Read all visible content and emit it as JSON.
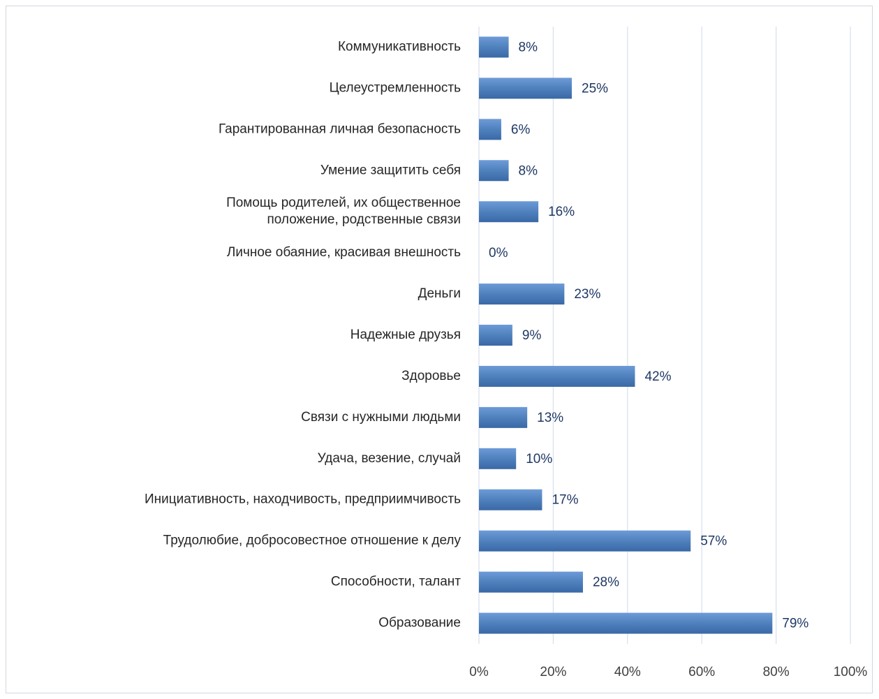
{
  "chart_data": {
    "type": "bar",
    "orientation": "horizontal",
    "categories": [
      "Коммуникативность",
      "Целеустремленность",
      "Гарантированная личная безопасность",
      "Умение защитить себя",
      "Помощь родителей, их общественное\nположение, родственные связи",
      "Личное обаяние, красивая внешность",
      "Деньги",
      "Надежные друзья",
      "Здоровье",
      "Связи с нужными людьми",
      "Удача, везение, случай",
      "Инициативность, находчивость, предприимчивость",
      "Трудолюбие, добросовестное отношение к делу",
      "Способности, талант",
      "Образование"
    ],
    "values": [
      8,
      25,
      6,
      8,
      16,
      0,
      23,
      9,
      42,
      13,
      10,
      17,
      57,
      28,
      79
    ],
    "value_labels": [
      "8%",
      "25%",
      "6%",
      "8%",
      "16%",
      "0%",
      "23%",
      "9%",
      "42%",
      "13%",
      "10%",
      "17%",
      "57%",
      "28%",
      "79%"
    ],
    "color": "#4f81bd",
    "xlim": [
      0,
      100
    ],
    "xticks": [
      {
        "value": 0,
        "label": "0%"
      },
      {
        "value": 20,
        "label": "20%"
      },
      {
        "value": 40,
        "label": "40%"
      },
      {
        "value": 60,
        "label": "60%"
      },
      {
        "value": 80,
        "label": "80%"
      },
      {
        "value": 100,
        "label": "100%"
      }
    ],
    "grid": true
  }
}
